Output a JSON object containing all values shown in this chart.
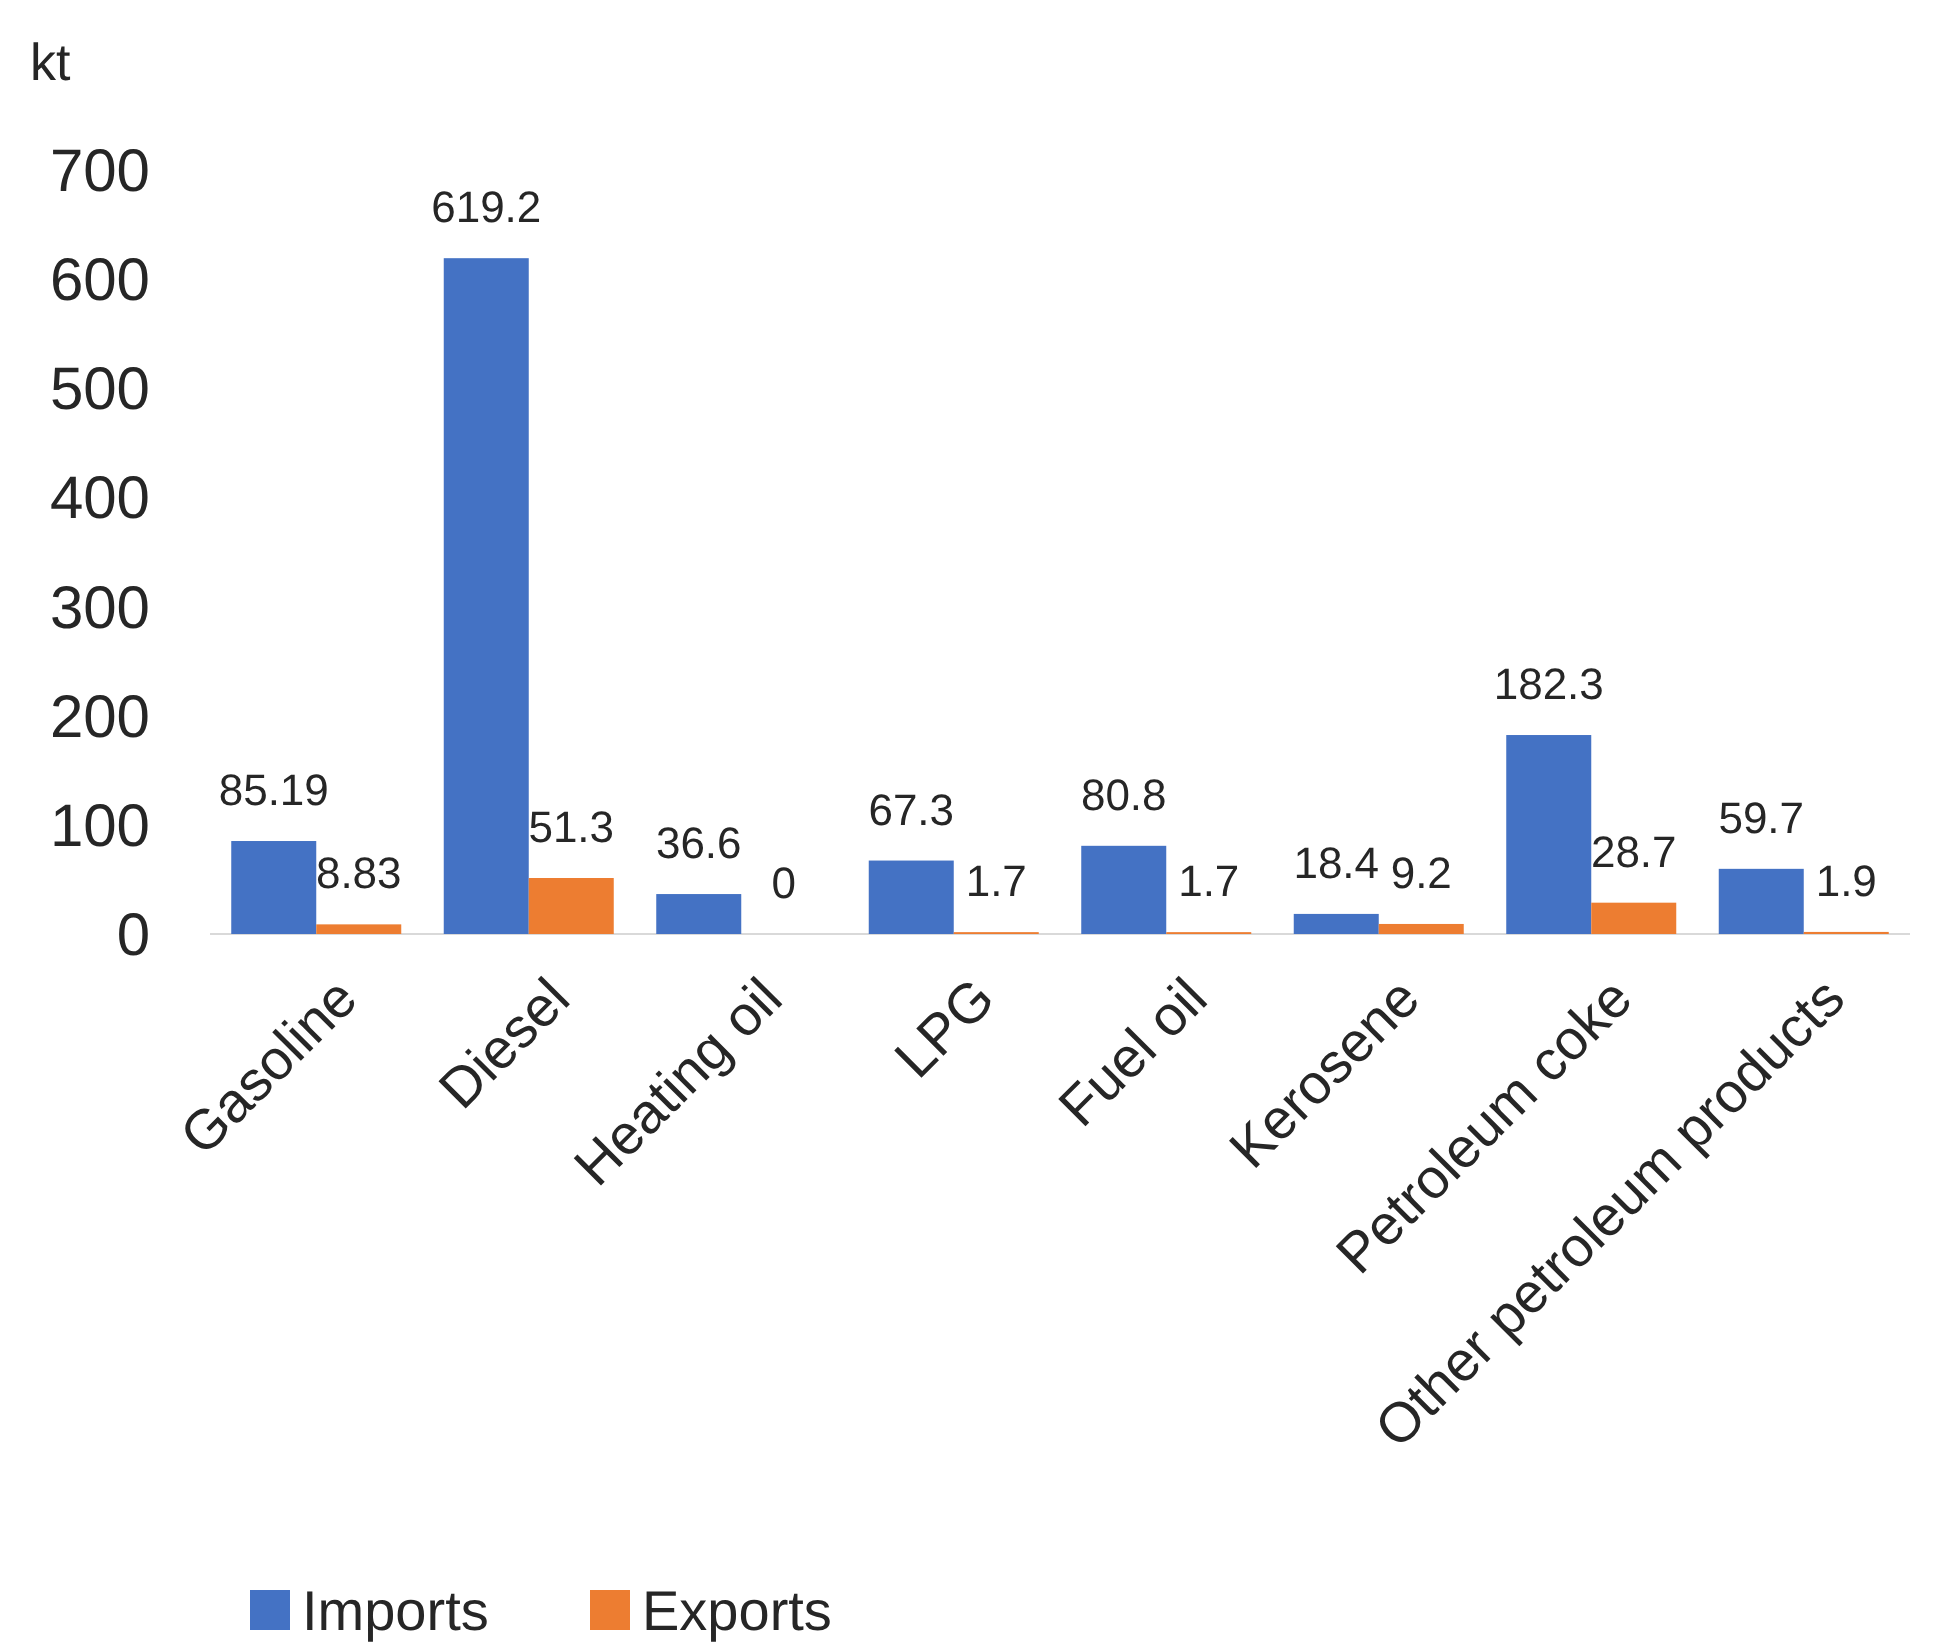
{
  "chart_data": {
    "type": "bar",
    "ylabel": "kt",
    "categories": [
      "Gasoline",
      "Diesel",
      "Heating oil",
      "LPG",
      "Fuel oil",
      "Kerosene",
      "Petroleum coke",
      "Other petroleum products"
    ],
    "series": [
      {
        "name": "Imports",
        "color": "#4472c4",
        "values": [
          85.19,
          619.2,
          36.6,
          67.3,
          80.8,
          18.4,
          182.3,
          59.7
        ]
      },
      {
        "name": "Exports",
        "color": "#ed7d31",
        "values": [
          8.83,
          51.3,
          0,
          1.7,
          1.7,
          9.2,
          28.7,
          1.9
        ]
      }
    ],
    "ylim": [
      0,
      700
    ],
    "yticks": [
      0,
      100,
      200,
      300,
      400,
      500,
      600,
      700
    ],
    "grid": false,
    "legend": "bottom",
    "data_labels": true
  }
}
